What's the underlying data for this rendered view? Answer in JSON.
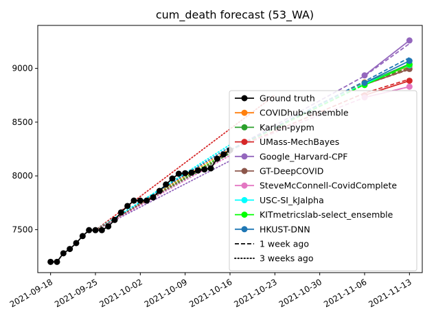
{
  "chart_data": {
    "type": "line",
    "title": "cum_death forecast (53_WA)",
    "xlabel": "",
    "ylabel": "",
    "x_axis_type": "date",
    "xlim": [
      "2021-09-16",
      "2021-11-15"
    ],
    "ylim": [
      7100,
      9400
    ],
    "x_ticks": [
      "2021-09-18",
      "2021-09-25",
      "2021-10-02",
      "2021-10-09",
      "2021-10-16",
      "2021-10-23",
      "2021-10-30",
      "2021-11-06",
      "2021-11-13"
    ],
    "y_ticks": [
      7500,
      8000,
      8500,
      9000
    ],
    "grid": false,
    "legend_position": "lower-right",
    "ground_truth": {
      "name": "Ground truth",
      "color": "#000000",
      "x": [
        "2021-09-18",
        "2021-09-19",
        "2021-09-20",
        "2021-09-21",
        "2021-09-22",
        "2021-09-23",
        "2021-09-24",
        "2021-09-25",
        "2021-09-26",
        "2021-09-27",
        "2021-09-28",
        "2021-09-29",
        "2021-09-30",
        "2021-10-01",
        "2021-10-02",
        "2021-10-03",
        "2021-10-04",
        "2021-10-05",
        "2021-10-06",
        "2021-10-07",
        "2021-10-08",
        "2021-10-09",
        "2021-10-10",
        "2021-10-11",
        "2021-10-12",
        "2021-10-13",
        "2021-10-14",
        "2021-10-15",
        "2021-10-16"
      ],
      "y": [
        7200,
        7200,
        7280,
        7320,
        7375,
        7440,
        7495,
        7495,
        7495,
        7530,
        7590,
        7660,
        7720,
        7770,
        7770,
        7770,
        7800,
        7860,
        7920,
        7975,
        8020,
        8025,
        8030,
        8050,
        8060,
        8070,
        8160,
        8200,
        8240
      ]
    },
    "series": [
      {
        "name": "COVIDhub-ensemble",
        "color": "#ff7f0e",
        "x": [
          "2021-11-06",
          "2021-11-13"
        ],
        "y": [
          8870,
          9020
        ]
      },
      {
        "name": "Karlen-pypm",
        "color": "#2ca02c",
        "x": [
          "2021-11-06",
          "2021-11-13"
        ],
        "y": [
          8860,
          9040
        ]
      },
      {
        "name": "UMass-MechBayes",
        "color": "#d62728",
        "x": [
          "2021-11-06",
          "2021-11-13"
        ],
        "y": [
          8750,
          8885
        ]
      },
      {
        "name": "Google_Harvard-CPF",
        "color": "#9467bd",
        "x": [
          "2021-11-06",
          "2021-11-13"
        ],
        "y": [
          8935,
          9260
        ]
      },
      {
        "name": "GT-DeepCOVID",
        "color": "#8c564b",
        "x": [
          "2021-11-06",
          "2021-11-13"
        ],
        "y": [
          8850,
          8995
        ]
      },
      {
        "name": "SteveMcConnell-CovidComplete",
        "color": "#e377c2",
        "x": [
          "2021-11-06",
          "2021-11-13"
        ],
        "y": [
          8730,
          8830
        ]
      },
      {
        "name": "USC-SI_kJalpha",
        "color": "#00ffff",
        "x": [
          "2021-11-06",
          "2021-11-13"
        ],
        "y": [
          8855,
          9030
        ]
      },
      {
        "name": "KITmetricslab-select_ensemble",
        "color": "#00ff00",
        "x": [
          "2021-11-06",
          "2021-11-13"
        ],
        "y": [
          8845,
          9035
        ]
      },
      {
        "name": "HKUST-DNN",
        "color": "#1f77b4",
        "x": [
          "2021-11-06",
          "2021-11-13"
        ],
        "y": [
          8865,
          9070
        ]
      }
    ],
    "legend": [
      {
        "label": "Ground truth",
        "color": "#000000",
        "style": "marker"
      },
      {
        "label": "COVIDhub-ensemble",
        "color": "#ff7f0e",
        "style": "marker"
      },
      {
        "label": "Karlen-pypm",
        "color": "#2ca02c",
        "style": "marker"
      },
      {
        "label": "UMass-MechBayes",
        "color": "#d62728",
        "style": "marker"
      },
      {
        "label": "Google_Harvard-CPF",
        "color": "#9467bd",
        "style": "marker"
      },
      {
        "label": "GT-DeepCOVID",
        "color": "#8c564b",
        "style": "marker"
      },
      {
        "label": "SteveMcConnell-CovidComplete",
        "color": "#e377c2",
        "style": "marker"
      },
      {
        "label": "USC-SI_kJalpha",
        "color": "#00ffff",
        "style": "marker"
      },
      {
        "label": "KITmetricslab-select_ensemble",
        "color": "#00ff00",
        "style": "marker"
      },
      {
        "label": "HKUST-DNN",
        "color": "#1f77b4",
        "style": "marker"
      },
      {
        "label": "1 week ago",
        "color": "#000000",
        "style": "dashed"
      },
      {
        "label": "3 weeks ago",
        "color": "#000000",
        "style": "dotted"
      }
    ],
    "one_week_ago_forecasts": [
      {
        "color": "#ff7f0e",
        "x": [
          "2021-10-16",
          "2021-11-06",
          "2021-11-13"
        ],
        "y": [
          8240,
          8870,
          9000
        ]
      },
      {
        "color": "#2ca02c",
        "x": [
          "2021-10-16",
          "2021-11-06",
          "2021-11-13"
        ],
        "y": [
          8240,
          8860,
          9010
        ]
      },
      {
        "color": "#d62728",
        "x": [
          "2021-10-16",
          "2021-11-06",
          "2021-11-13"
        ],
        "y": [
          8240,
          8770,
          8900
        ]
      },
      {
        "color": "#9467bd",
        "x": [
          "2021-10-16",
          "2021-11-06",
          "2021-11-13"
        ],
        "y": [
          8240,
          8930,
          9230
        ]
      },
      {
        "color": "#8c564b",
        "x": [
          "2021-10-16",
          "2021-11-06",
          "2021-11-13"
        ],
        "y": [
          8240,
          8850,
          8990
        ]
      },
      {
        "color": "#e377c2",
        "x": [
          "2021-10-16",
          "2021-11-06",
          "2021-11-13"
        ],
        "y": [
          8240,
          8730,
          8830
        ]
      },
      {
        "color": "#00ffff",
        "x": [
          "2021-10-16",
          "2021-11-06",
          "2021-11-13"
        ],
        "y": [
          8240,
          8860,
          9040
        ]
      },
      {
        "color": "#00ff00",
        "x": [
          "2021-10-16",
          "2021-11-06",
          "2021-11-13"
        ],
        "y": [
          8240,
          8850,
          9030
        ]
      },
      {
        "color": "#1f77b4",
        "x": [
          "2021-10-16",
          "2021-11-06",
          "2021-11-13"
        ],
        "y": [
          8240,
          8880,
          9100
        ]
      }
    ],
    "three_weeks_ago_forecasts": [
      {
        "color": "#d62728",
        "x": [
          "2021-09-25",
          "2021-10-23"
        ],
        "y": [
          7495,
          8750
        ]
      },
      {
        "color": "#9467bd",
        "x": [
          "2021-09-25",
          "2021-10-16"
        ],
        "y": [
          7495,
          8140
        ]
      },
      {
        "color": "#00ff00",
        "x": [
          "2021-09-25",
          "2021-10-16"
        ],
        "y": [
          7495,
          8230
        ]
      },
      {
        "color": "#2ca02c",
        "x": [
          "2021-09-25",
          "2021-10-16"
        ],
        "y": [
          7495,
          8210
        ]
      },
      {
        "color": "#ff7f0e",
        "x": [
          "2021-09-25",
          "2021-10-16"
        ],
        "y": [
          7495,
          8250
        ]
      },
      {
        "color": "#1f77b4",
        "x": [
          "2021-09-25",
          "2021-10-16"
        ],
        "y": [
          7495,
          8270
        ]
      },
      {
        "color": "#00ffff",
        "x": [
          "2021-09-25",
          "2021-10-16"
        ],
        "y": [
          7495,
          8290
        ]
      },
      {
        "color": "#e377c2",
        "x": [
          "2021-09-25",
          "2021-10-16"
        ],
        "y": [
          7495,
          8190
        ]
      },
      {
        "color": "#8c564b",
        "x": [
          "2021-09-25",
          "2021-10-16"
        ],
        "y": [
          7495,
          8220
        ]
      }
    ]
  }
}
